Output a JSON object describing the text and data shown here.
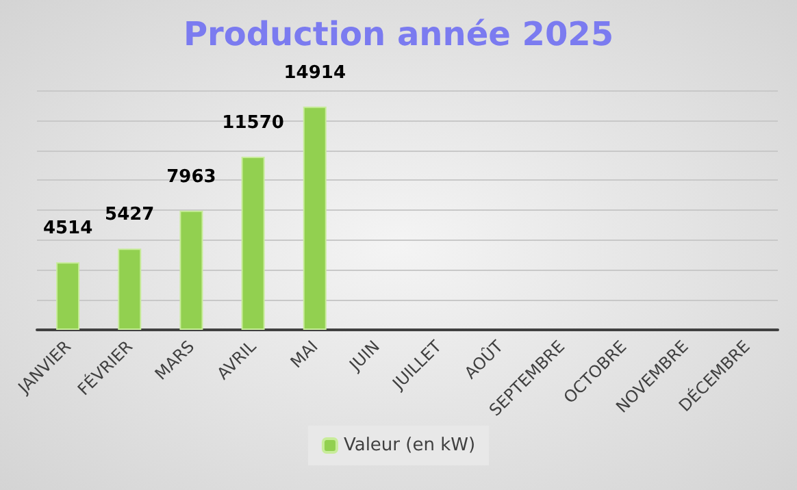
{
  "chart_data": {
    "type": "bar",
    "title": "Production année 2025",
    "categories": [
      "JANVIER",
      "FÉVRIER",
      "MARS",
      "AVRIL",
      "MAI",
      "JUIN",
      "JUILLET",
      "AOÛT",
      "SEPTEMBRE",
      "OCTOBRE",
      "NOVEMBRE",
      "DÉCEMBRE"
    ],
    "series": [
      {
        "name": "Valeur (en kW)",
        "color": "#92d050",
        "values": [
          4514,
          5427,
          7963,
          11570,
          14914,
          null,
          null,
          null,
          null,
          null,
          null,
          null
        ]
      }
    ],
    "ylim": [
      0,
      16000
    ],
    "yticks": [
      {
        "value": 0,
        "label": null
      },
      {
        "value": 2000,
        "label": null
      },
      {
        "value": 4000,
        "label": null
      },
      {
        "value": 6000,
        "label": null
      },
      {
        "value": 8000,
        "label": null
      },
      {
        "value": 10000,
        "label": null
      },
      {
        "value": 12000,
        "label": null
      },
      {
        "value": 14000,
        "label": null
      },
      {
        "value": 16000,
        "label": null
      }
    ],
    "tick_labels": "x",
    "grid": "y",
    "legend": "bottom",
    "data_labels": true
  }
}
